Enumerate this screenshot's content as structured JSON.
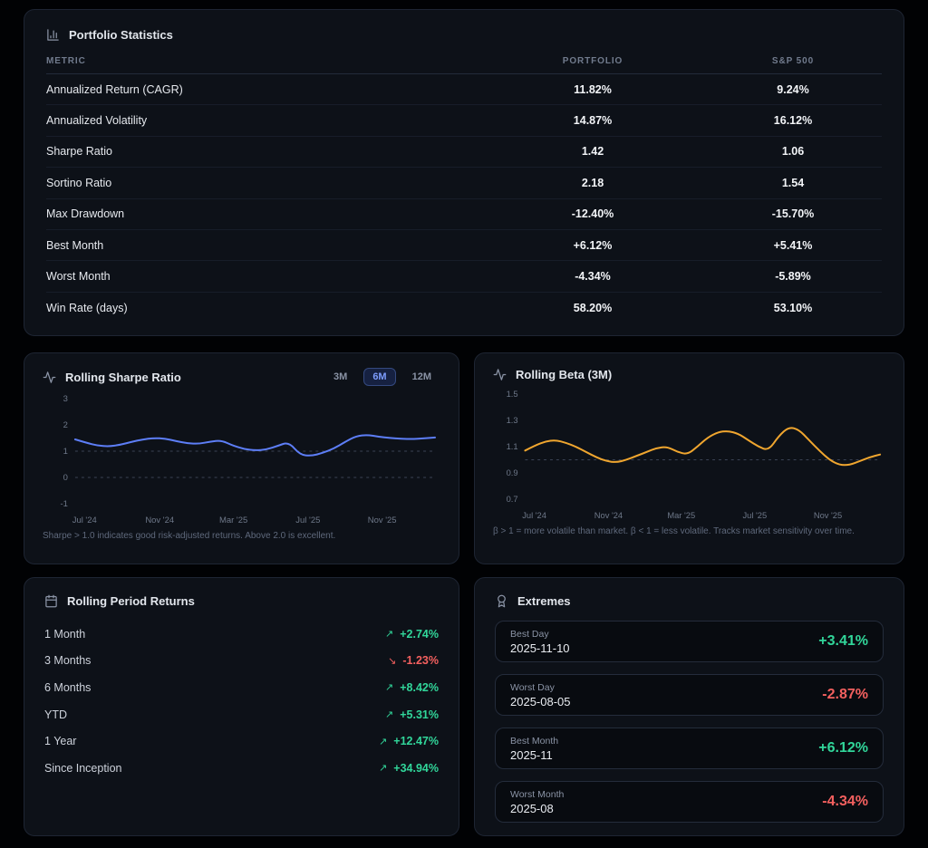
{
  "colors": {
    "accent_blue": "#5d7ef7",
    "accent_orange": "#f0a62f",
    "positive_green": "#31d69a",
    "negative_red": "#f4605f",
    "active_button_bg": "#162141",
    "active_button_border": "#34497f",
    "active_button_text": "#7d9dff"
  },
  "stats_panel": {
    "title": "Portfolio Statistics",
    "columns": [
      "METRIC",
      "PORTFOLIO",
      "S&P 500"
    ],
    "rows": [
      {
        "metric": "Annualized Return (CAGR)",
        "portfolio": "11.82%",
        "sp500": "9.24%"
      },
      {
        "metric": "Annualized Volatility",
        "portfolio": "14.87%",
        "sp500": "16.12%"
      },
      {
        "metric": "Sharpe Ratio",
        "portfolio": "1.42",
        "sp500": "1.06"
      },
      {
        "metric": "Sortino Ratio",
        "portfolio": "2.18",
        "sp500": "1.54"
      },
      {
        "metric": "Max Drawdown",
        "portfolio": "-12.40%",
        "sp500": "-15.70%"
      },
      {
        "metric": "Best Month",
        "portfolio": "+6.12%",
        "sp500": "+5.41%"
      },
      {
        "metric": "Worst Month",
        "portfolio": "-4.34%",
        "sp500": "-5.89%"
      },
      {
        "metric": "Win Rate (days)",
        "portfolio": "58.20%",
        "sp500": "53.10%"
      }
    ]
  },
  "sharpe_panel": {
    "title": "Rolling Sharpe Ratio",
    "range_buttons": [
      {
        "label": "3M",
        "active": false
      },
      {
        "label": "6M",
        "active": true
      },
      {
        "label": "12M",
        "active": false
      }
    ],
    "caption": "Sharpe > 1.0 indicates good risk-adjusted returns. Above 2.0 is excellent."
  },
  "beta_panel": {
    "title": "Rolling Beta (3M)",
    "caption": "β > 1 = more volatile than market. β < 1 = less volatile. Tracks market sensitivity over time."
  },
  "periods_panel": {
    "title": "Rolling Period Returns",
    "rows": [
      {
        "label": "1 Month",
        "value": "+2.74%",
        "direction": "up"
      },
      {
        "label": "3 Months",
        "value": "-1.23%",
        "direction": "down"
      },
      {
        "label": "6 Months",
        "value": "+8.42%",
        "direction": "up"
      },
      {
        "label": "YTD",
        "value": "+5.31%",
        "direction": "up"
      },
      {
        "label": "1 Year",
        "value": "+12.47%",
        "direction": "up"
      },
      {
        "label": "Since Inception",
        "value": "+34.94%",
        "direction": "up"
      }
    ],
    "up_arrow": "↗",
    "down_arrow": "↘"
  },
  "extremes_panel": {
    "title": "Extremes",
    "cards": [
      {
        "label": "Best Day",
        "date": "2025-11-10",
        "value": "+3.41%",
        "positive": true
      },
      {
        "label": "Worst Day",
        "date": "2025-08-05",
        "value": "-2.87%",
        "positive": false
      },
      {
        "label": "Best Month",
        "date": "2025-11",
        "value": "+6.12%",
        "positive": true
      },
      {
        "label": "Worst Month",
        "date": "2025-08",
        "value": "-4.34%",
        "positive": false
      }
    ]
  },
  "chart_data": [
    {
      "id": "sharpe",
      "type": "line",
      "title": "Rolling Sharpe Ratio",
      "series_color": "#5d7ef7",
      "ylim": [
        -1,
        3
      ],
      "yticks": [
        3,
        2,
        1,
        0,
        -1
      ],
      "reference_lines": [
        1,
        0
      ],
      "x_ticklabels": [
        "Jul '24",
        "Nov '24",
        "Mar '25",
        "Jul '25",
        "Nov '25"
      ],
      "values": [
        1.45,
        1.32,
        1.21,
        1.18,
        1.24,
        1.35,
        1.45,
        1.5,
        1.48,
        1.38,
        1.3,
        1.28,
        1.36,
        1.41,
        1.22,
        1.08,
        1.03,
        1.06,
        1.2,
        1.35,
        0.86,
        0.82,
        0.93,
        1.1,
        1.35,
        1.58,
        1.62,
        1.55,
        1.5,
        1.47,
        1.46,
        1.49,
        1.52
      ]
    },
    {
      "id": "beta",
      "type": "line",
      "title": "Rolling Beta (3M)",
      "series_color": "#f0a62f",
      "ylim": [
        0.7,
        1.5
      ],
      "yticks": [
        1.5,
        1.3,
        1.1,
        0.9,
        0.7
      ],
      "reference_lines": [
        1.0
      ],
      "x_ticklabels": [
        "Jul '24",
        "Nov '24",
        "Mar '25",
        "Jul '25",
        "Nov '25"
      ],
      "values": [
        1.07,
        1.11,
        1.14,
        1.15,
        1.13,
        1.1,
        1.06,
        1.02,
        0.99,
        0.98,
        1.0,
        1.03,
        1.06,
        1.09,
        1.1,
        1.06,
        1.04,
        1.1,
        1.17,
        1.21,
        1.22,
        1.2,
        1.15,
        1.1,
        1.07,
        1.18,
        1.25,
        1.23,
        1.15,
        1.07,
        1.0,
        0.96,
        0.96,
        0.99,
        1.02,
        1.04
      ]
    }
  ]
}
